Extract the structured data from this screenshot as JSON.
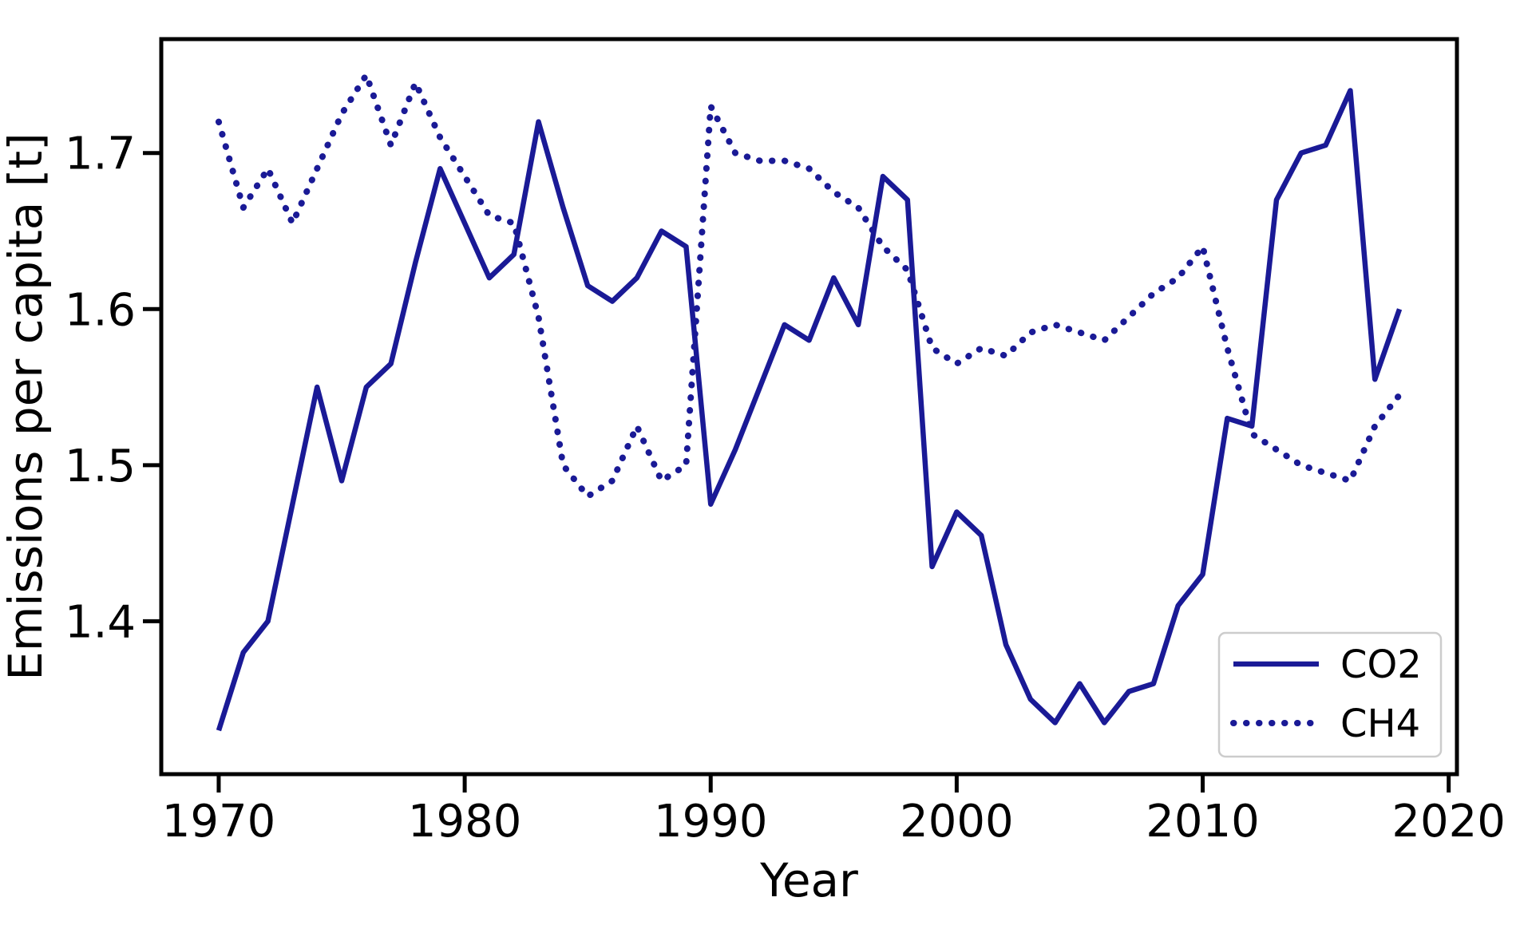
{
  "figure": {
    "background": "#ffffff"
  },
  "chart_data": {
    "type": "line",
    "title": "",
    "xlabel": "Year",
    "ylabel": "Emissions per capita [t]",
    "x_ticks": [
      1970,
      1980,
      1990,
      2000,
      2010,
      2020
    ],
    "y_ticks": [
      1.4,
      1.5,
      1.6,
      1.7
    ],
    "xlim": [
      1967.6,
      2020.4
    ],
    "ylim": [
      1.301,
      1.774
    ],
    "grid": false,
    "axis_color": "#000000",
    "line_color": "#1a1a96",
    "legend": {
      "position": "lower right",
      "entries": [
        "CO2",
        "CH4"
      ]
    },
    "x": [
      1970,
      1971,
      1972,
      1973,
      1974,
      1975,
      1976,
      1977,
      1978,
      1979,
      1980,
      1981,
      1982,
      1983,
      1984,
      1985,
      1986,
      1987,
      1988,
      1989,
      1990,
      1991,
      1992,
      1993,
      1994,
      1995,
      1996,
      1997,
      1998,
      1999,
      2000,
      2001,
      2002,
      2003,
      2004,
      2005,
      2006,
      2007,
      2008,
      2009,
      2010,
      2011,
      2012,
      2013,
      2014,
      2015,
      2016,
      2017,
      2018
    ],
    "series": [
      {
        "name": "CO2",
        "linestyle": "solid",
        "values": [
          1.33,
          1.38,
          1.4,
          1.475,
          1.55,
          1.49,
          1.55,
          1.565,
          1.63,
          1.69,
          1.655,
          1.62,
          1.635,
          1.72,
          1.665,
          1.615,
          1.605,
          1.62,
          1.65,
          1.64,
          1.475,
          1.51,
          1.55,
          1.59,
          1.58,
          1.62,
          1.59,
          1.685,
          1.67,
          1.435,
          1.47,
          1.455,
          1.385,
          1.35,
          1.335,
          1.36,
          1.335,
          1.355,
          1.36,
          1.41,
          1.43,
          1.53,
          1.525,
          1.67,
          1.7,
          1.705,
          1.74,
          1.555,
          1.6
        ]
      },
      {
        "name": "CH4",
        "linestyle": "dotted",
        "values": [
          1.72,
          1.665,
          1.69,
          1.655,
          1.69,
          1.725,
          1.75,
          1.705,
          1.745,
          1.71,
          1.685,
          1.66,
          1.655,
          1.595,
          1.5,
          1.48,
          1.49,
          1.525,
          1.49,
          1.5,
          1.73,
          1.7,
          1.695,
          1.695,
          1.69,
          1.675,
          1.665,
          1.64,
          1.625,
          1.575,
          1.565,
          1.575,
          1.57,
          1.585,
          1.59,
          1.585,
          1.58,
          1.595,
          1.61,
          1.62,
          1.64,
          1.575,
          1.52,
          1.51,
          1.5,
          1.495,
          1.49,
          1.525,
          1.545
        ]
      }
    ]
  }
}
